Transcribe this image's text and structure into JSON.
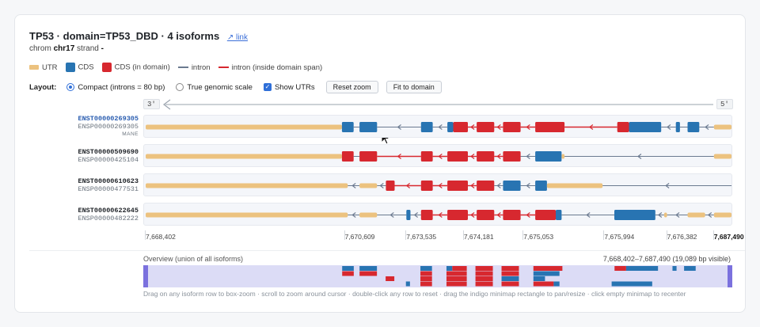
{
  "header": {
    "title": "TP53 · domain=TP53_DBD · 4 isoforms",
    "link_label": "↗ link",
    "chrom_label": "chrom",
    "chrom": "chr17",
    "strand_label": "strand",
    "strand": "-"
  },
  "legend": {
    "utr": "UTR",
    "cds": "CDS",
    "cds_domain": "CDS (in domain)",
    "intron": "intron",
    "intron_domain": "intron (inside domain span)"
  },
  "colors": {
    "utr": "#ecc27f",
    "cds": "#2874b2",
    "cds_domain": "#d7282f",
    "intron": "#6b7a90",
    "intron_domain": "#d7282f",
    "minimap_bg": "#dcdcf6",
    "minimap_handle": "#7b71de"
  },
  "controls": {
    "layout_label": "Layout:",
    "compact_label": "Compact (introns = 80 bp)",
    "genomic_label": "True genomic scale",
    "show_utrs_label": "Show UTRs",
    "reset_zoom": "Reset zoom",
    "fit_domain": "Fit to domain",
    "compact_selected": true,
    "show_utrs": true
  },
  "strand_bar": {
    "left": "3'",
    "right": "5'"
  },
  "isoforms": [
    {
      "transcript": "ENST00000269305",
      "protein": "ENSP00000269305",
      "tag": "MANE",
      "segments": [
        [
          "u",
          0,
          33.5
        ],
        [
          "c",
          33.5,
          35.5
        ],
        [
          "i",
          35.5,
          36.5
        ],
        [
          "c",
          36.5,
          39.5
        ],
        [
          "i",
          39.5,
          47
        ],
        [
          "c",
          47,
          49
        ],
        [
          "i",
          49,
          51.5
        ],
        [
          "c",
          51.5,
          52.5
        ],
        [
          "d",
          52.5,
          55
        ],
        [
          "I",
          55,
          56.5
        ],
        [
          "d",
          56.5,
          59.5
        ],
        [
          "I",
          59.5,
          61
        ],
        [
          "d",
          61,
          64
        ],
        [
          "I",
          64,
          66.5
        ],
        [
          "d",
          66.5,
          71.5
        ],
        [
          "I",
          71.5,
          80.5
        ],
        [
          "d",
          80.5,
          82.5
        ],
        [
          "c",
          82.5,
          88
        ],
        [
          "i",
          88,
          90.5
        ],
        [
          "c",
          90.5,
          91.2
        ],
        [
          "i",
          91.2,
          92.5
        ],
        [
          "c",
          92.5,
          94.5
        ],
        [
          "i",
          94.5,
          97
        ],
        [
          "u",
          97,
          100
        ]
      ]
    },
    {
      "transcript": "ENST00000509690",
      "protein": "ENSP00000425104",
      "tag": "",
      "segments": [
        [
          "u",
          0,
          33.5
        ],
        [
          "d",
          33.5,
          35.5
        ],
        [
          "i",
          35.5,
          36.5
        ],
        [
          "d",
          36.5,
          39.5
        ],
        [
          "I",
          39.5,
          47
        ],
        [
          "d",
          47,
          49
        ],
        [
          "I",
          49,
          51.5
        ],
        [
          "d",
          51.5,
          55
        ],
        [
          "I",
          55,
          56.5
        ],
        [
          "d",
          56.5,
          59.5
        ],
        [
          "I",
          59.5,
          61
        ],
        [
          "d",
          61,
          64
        ],
        [
          "i",
          64,
          66.5
        ],
        [
          "c",
          66.5,
          71
        ],
        [
          "u",
          71,
          71.5
        ],
        [
          "i",
          71.5,
          97
        ],
        [
          "u",
          97,
          100
        ]
      ]
    },
    {
      "transcript": "ENST00000610623",
      "protein": "ENSP00000477531",
      "tag": "",
      "segments": [
        [
          "u",
          0,
          34.5
        ],
        [
          "i",
          34.5,
          36.5
        ],
        [
          "u",
          36.5,
          39.5
        ],
        [
          "i",
          39.5,
          41
        ],
        [
          "d",
          41,
          42.5
        ],
        [
          "I",
          42.5,
          47
        ],
        [
          "d",
          47,
          49
        ],
        [
          "I",
          49,
          51.5
        ],
        [
          "d",
          51.5,
          55
        ],
        [
          "I",
          55,
          56.5
        ],
        [
          "d",
          56.5,
          59.5
        ],
        [
          "i",
          59.5,
          61
        ],
        [
          "c",
          61,
          64
        ],
        [
          "i",
          64,
          66.5
        ],
        [
          "c",
          66.5,
          68.5
        ],
        [
          "u",
          68.5,
          78
        ],
        [
          "i",
          78,
          100
        ]
      ]
    },
    {
      "transcript": "ENST00000622645",
      "protein": "ENSP00000482222",
      "tag": "",
      "segments": [
        [
          "u",
          0,
          34.5
        ],
        [
          "i",
          34.5,
          36.5
        ],
        [
          "u",
          36.5,
          39.5
        ],
        [
          "i",
          39.5,
          44.5
        ],
        [
          "c",
          44.5,
          45.2
        ],
        [
          "i",
          45.2,
          47
        ],
        [
          "d",
          47,
          49
        ],
        [
          "I",
          49,
          51.5
        ],
        [
          "d",
          51.5,
          55
        ],
        [
          "I",
          55,
          56.5
        ],
        [
          "d",
          56.5,
          59.5
        ],
        [
          "I",
          59.5,
          61
        ],
        [
          "d",
          61,
          64
        ],
        [
          "I",
          64,
          66.5
        ],
        [
          "d",
          66.5,
          70
        ],
        [
          "c",
          70,
          71
        ],
        [
          "i",
          71,
          80
        ],
        [
          "c",
          80,
          87
        ],
        [
          "i",
          87,
          88.5
        ],
        [
          "u",
          88.5,
          89
        ],
        [
          "i",
          89,
          92.5
        ],
        [
          "u",
          92.5,
          95.5
        ],
        [
          "i",
          95.5,
          97
        ],
        [
          "u",
          97,
          100
        ]
      ]
    }
  ],
  "coords": [
    "7,668,402",
    "7,670,609",
    "7,673,535",
    "7,674,181",
    "7,675,053",
    "7,675,994",
    "7,676,382",
    "7,687,490"
  ],
  "coord_positions": [
    0,
    34,
    44.5,
    54.3,
    64.5,
    78.3,
    89,
    97
  ],
  "overview": {
    "title": "Overview (union of all isoforms)",
    "range": "7,668,402–7,687,490 (19,089 bp visible)"
  },
  "help_text": "Drag on any isoform row to box-zoom · scroll to zoom around cursor · double-click any row to reset · drag the indigo minimap rectangle to pan/resize · click empty minimap to recenter"
}
